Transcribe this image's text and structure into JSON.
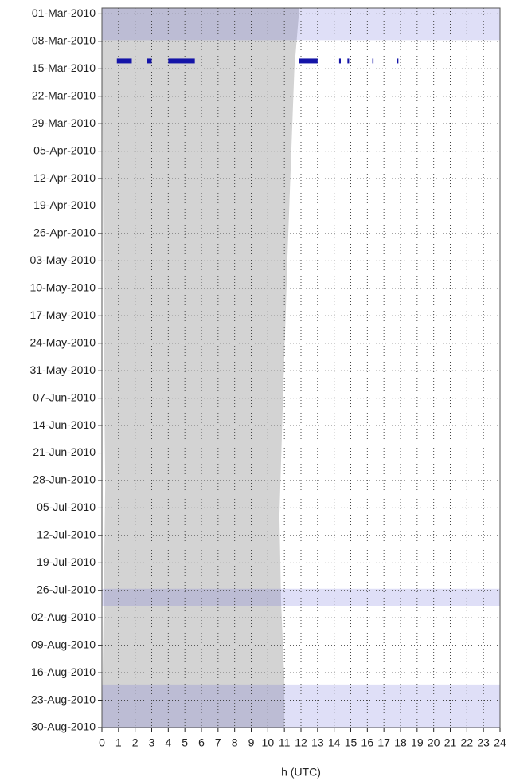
{
  "chart_data": {
    "type": "timeline",
    "xlabel": "h (UTC)",
    "xlim": [
      0,
      24
    ],
    "xticks": [
      0,
      1,
      2,
      3,
      4,
      5,
      6,
      7,
      8,
      9,
      10,
      11,
      12,
      13,
      14,
      15,
      16,
      17,
      18,
      19,
      20,
      21,
      22,
      23,
      24
    ],
    "ylim": [
      -1.5,
      182
    ],
    "yticks": [
      {
        "value": 0,
        "label": "01-Mar-2010"
      },
      {
        "value": 7,
        "label": "08-Mar-2010"
      },
      {
        "value": 14,
        "label": "15-Mar-2010"
      },
      {
        "value": 21,
        "label": "22-Mar-2010"
      },
      {
        "value": 28,
        "label": "29-Mar-2010"
      },
      {
        "value": 35,
        "label": "05-Apr-2010"
      },
      {
        "value": 42,
        "label": "12-Apr-2010"
      },
      {
        "value": 49,
        "label": "19-Apr-2010"
      },
      {
        "value": 56,
        "label": "26-Apr-2010"
      },
      {
        "value": 63,
        "label": "03-May-2010"
      },
      {
        "value": 70,
        "label": "10-May-2010"
      },
      {
        "value": 77,
        "label": "17-May-2010"
      },
      {
        "value": 84,
        "label": "24-May-2010"
      },
      {
        "value": 91,
        "label": "31-May-2010"
      },
      {
        "value": 98,
        "label": "07-Jun-2010"
      },
      {
        "value": 105,
        "label": "14-Jun-2010"
      },
      {
        "value": 112,
        "label": "21-Jun-2010"
      },
      {
        "value": 119,
        "label": "28-Jun-2010"
      },
      {
        "value": 126,
        "label": "05-Jul-2010"
      },
      {
        "value": 133,
        "label": "12-Jul-2010"
      },
      {
        "value": 140,
        "label": "19-Jul-2010"
      },
      {
        "value": 147,
        "label": "26-Jul-2010"
      },
      {
        "value": 154,
        "label": "02-Aug-2010"
      },
      {
        "value": 161,
        "label": "09-Aug-2010"
      },
      {
        "value": 168,
        "label": "16-Aug-2010"
      },
      {
        "value": 175,
        "label": "23-Aug-2010"
      },
      {
        "value": 182,
        "label": "30-Aug-2010"
      }
    ],
    "grid": true,
    "night": {
      "color": "#d3d3d3",
      "x": [
        0,
        11.9,
        11.6,
        11.2,
        10.9,
        10.7,
        10.8,
        11.0,
        11.0,
        0,
        0.2,
        0.1,
        0
      ],
      "y": [
        -1.5,
        -1.5,
        14,
        60,
        100,
        128,
        150,
        170,
        182,
        182,
        120,
        80,
        -1.5
      ]
    },
    "bands": {
      "color": "#6e6edc",
      "y_start": [
        -1.5,
        146.6,
        171
      ],
      "y_end": [
        6.7,
        151,
        182
      ]
    },
    "segments": {
      "color": "#1414a8",
      "y": 12,
      "start": [
        0.9,
        2.7,
        4.0,
        11.9,
        14.3,
        14.8,
        16.3,
        17.8
      ],
      "end": [
        1.8,
        3.0,
        5.6,
        13.0,
        14.4,
        14.9,
        16.35,
        17.85
      ]
    }
  }
}
